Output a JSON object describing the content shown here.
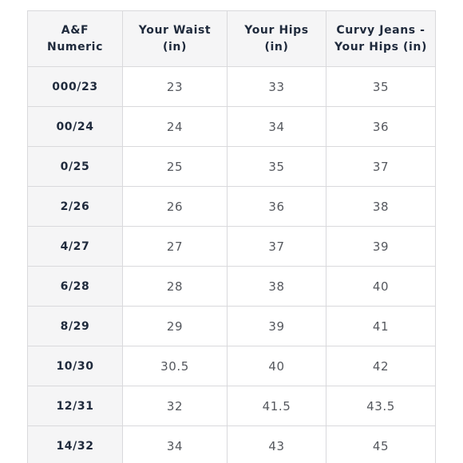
{
  "table": {
    "headers": [
      [
        "A&F",
        "Numeric"
      ],
      [
        "Your Waist",
        "(in)"
      ],
      [
        "Your Hips",
        "(in)"
      ],
      [
        "Curvy Jeans -",
        "Your Hips (in)"
      ]
    ],
    "rows": [
      [
        "000/23",
        "23",
        "33",
        "35"
      ],
      [
        "00/24",
        "24",
        "34",
        "36"
      ],
      [
        "0/25",
        "25",
        "35",
        "37"
      ],
      [
        "2/26",
        "26",
        "36",
        "38"
      ],
      [
        "4/27",
        "27",
        "37",
        "39"
      ],
      [
        "6/28",
        "28",
        "38",
        "40"
      ],
      [
        "8/29",
        "29",
        "39",
        "41"
      ],
      [
        "10/30",
        "30.5",
        "40",
        "42"
      ],
      [
        "12/31",
        "32",
        "41.5",
        "43.5"
      ],
      [
        "14/32",
        "34",
        "43",
        "45"
      ]
    ]
  }
}
